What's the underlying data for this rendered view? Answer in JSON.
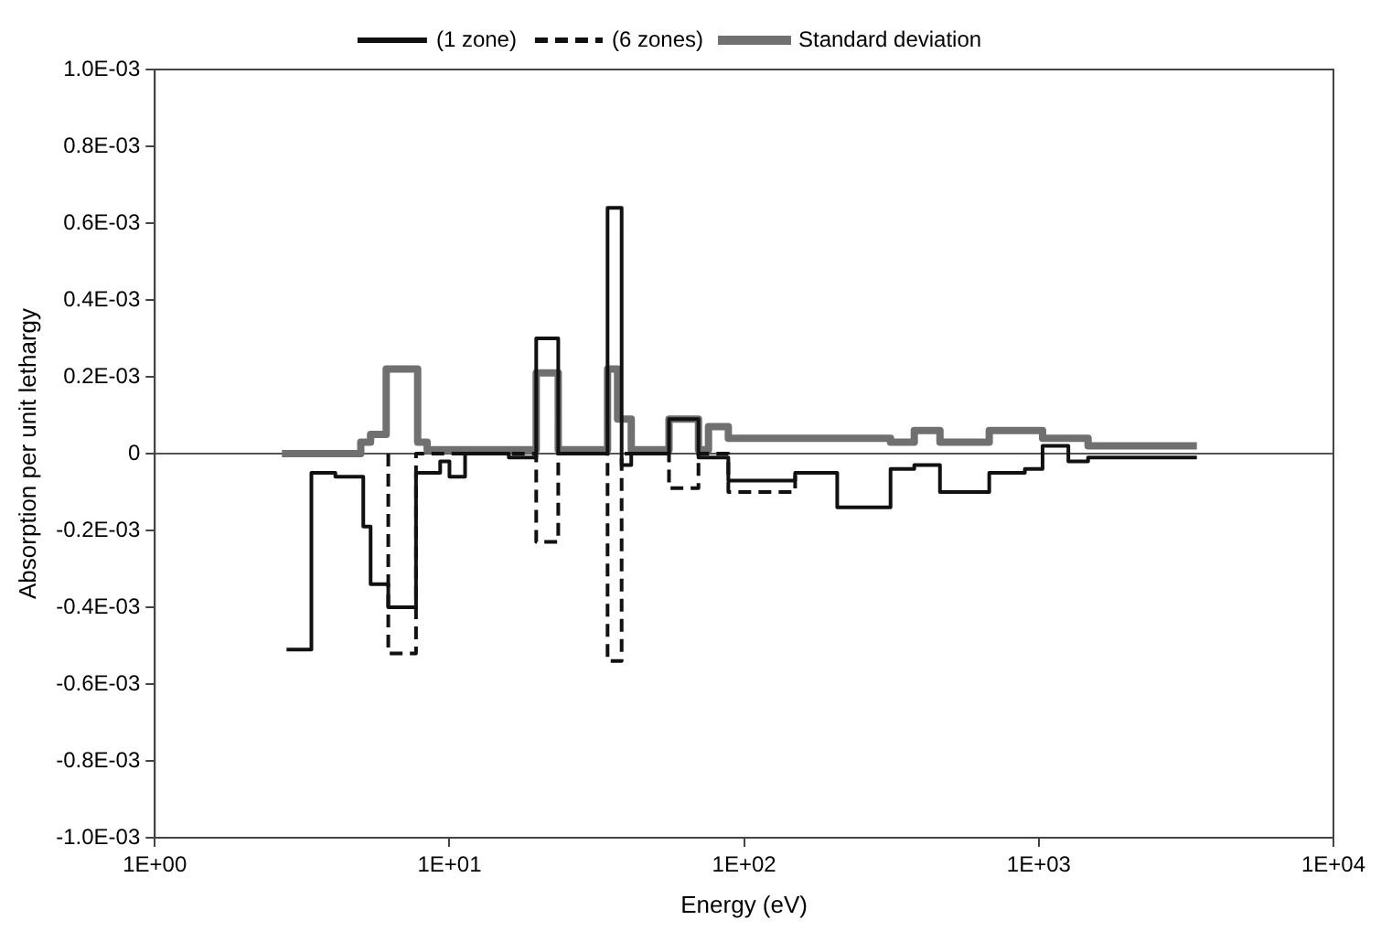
{
  "chart_data": {
    "type": "step",
    "xlabel": "Energy (eV)",
    "ylabel": "Absorption per unit lethargy",
    "log": "x",
    "xlim": [
      1,
      10000
    ],
    "ylim": [
      -0.001,
      0.001
    ],
    "xticks": [
      {
        "value": 1,
        "label": "1E+00"
      },
      {
        "value": 10,
        "label": "1E+01"
      },
      {
        "value": 100,
        "label": "1E+02"
      },
      {
        "value": 1000,
        "label": "1E+03"
      },
      {
        "value": 10000,
        "label": "1E+04"
      }
    ],
    "yticks": [
      {
        "value": -0.001,
        "label": "-1.0E-03"
      },
      {
        "value": -0.0008,
        "label": "-0.8E-03"
      },
      {
        "value": -0.0006,
        "label": "-0.6E-03"
      },
      {
        "value": -0.0004,
        "label": "-0.4E-03"
      },
      {
        "value": -0.0002,
        "label": "-0.2E-03"
      },
      {
        "value": 0,
        "label": "0"
      },
      {
        "value": 0.0002,
        "label": "0.2E-03"
      },
      {
        "value": 0.0004,
        "label": "0.4E-03"
      },
      {
        "value": 0.0006,
        "label": "0.6E-03"
      },
      {
        "value": 0.0008,
        "label": "0.8E-03"
      },
      {
        "value": 0.001,
        "label": "1.0E-03"
      }
    ],
    "grid": false,
    "legend": "top",
    "marker": "none",
    "ref_lines": [
      {
        "axis": "y",
        "value": 0,
        "color": "#555555"
      }
    ],
    "series": [
      {
        "name": "(1 zone)",
        "color": "#111111",
        "line_style": "solid",
        "x": [
          2.8,
          3.4,
          4.1,
          5.1,
          5.4,
          6.2,
          7.7,
          8.4,
          9.3,
          10.0,
          11.3,
          15.9,
          19.7,
          23.4,
          34.4,
          38.4,
          41.4,
          55.6,
          70,
          75.7,
          88.4,
          149,
          207,
          314,
          378,
          462,
          679,
          897,
          1030,
          1260,
          1470,
          3440
        ],
        "values": [
          -0.00051,
          -5e-05,
          -6e-05,
          -0.00019,
          -0.00034,
          -0.0004,
          -5e-05,
          -5e-05,
          -2e-05,
          -6e-05,
          0,
          -1e-05,
          0.0003,
          0,
          0.00064,
          -3e-05,
          0,
          9e-05,
          -1e-05,
          -1e-05,
          -7e-05,
          -5e-05,
          -0.00014,
          -4e-05,
          -3e-05,
          -0.0001,
          -5e-05,
          -4e-05,
          2e-05,
          -2e-05,
          -1e-05,
          -1e-05
        ]
      },
      {
        "name": "(6 zones)",
        "color": "#111111",
        "line_style": "dashed",
        "x": [
          6.2,
          6.2,
          7.7,
          19.7,
          23.4,
          34.4,
          38.4,
          55.6,
          70,
          88.4,
          88.4,
          149
        ],
        "values": [
          0,
          -0.00052,
          0,
          -0.00023,
          0,
          -0.00054,
          0,
          -9e-05,
          0,
          -1e-05,
          -0.0001,
          -5e-05
        ]
      },
      {
        "name": "Standard deviation",
        "color": "#707070",
        "line_style": "solid",
        "x": [
          2.7,
          5.0,
          5.4,
          6.1,
          7.8,
          8.4,
          19.7,
          23.4,
          34.4,
          37.2,
          41.4,
          55.6,
          70,
          75.7,
          88.4,
          314,
          378,
          462,
          679,
          1030,
          1470,
          3440
        ],
        "values": [
          0,
          3e-05,
          5e-05,
          0.00022,
          3e-05,
          1e-05,
          0.00021,
          1e-05,
          0.00022,
          9e-05,
          1e-05,
          9e-05,
          1e-05,
          7e-05,
          4e-05,
          3e-05,
          6e-05,
          3e-05,
          6e-05,
          4e-05,
          2e-05,
          2e-05
        ]
      }
    ]
  }
}
